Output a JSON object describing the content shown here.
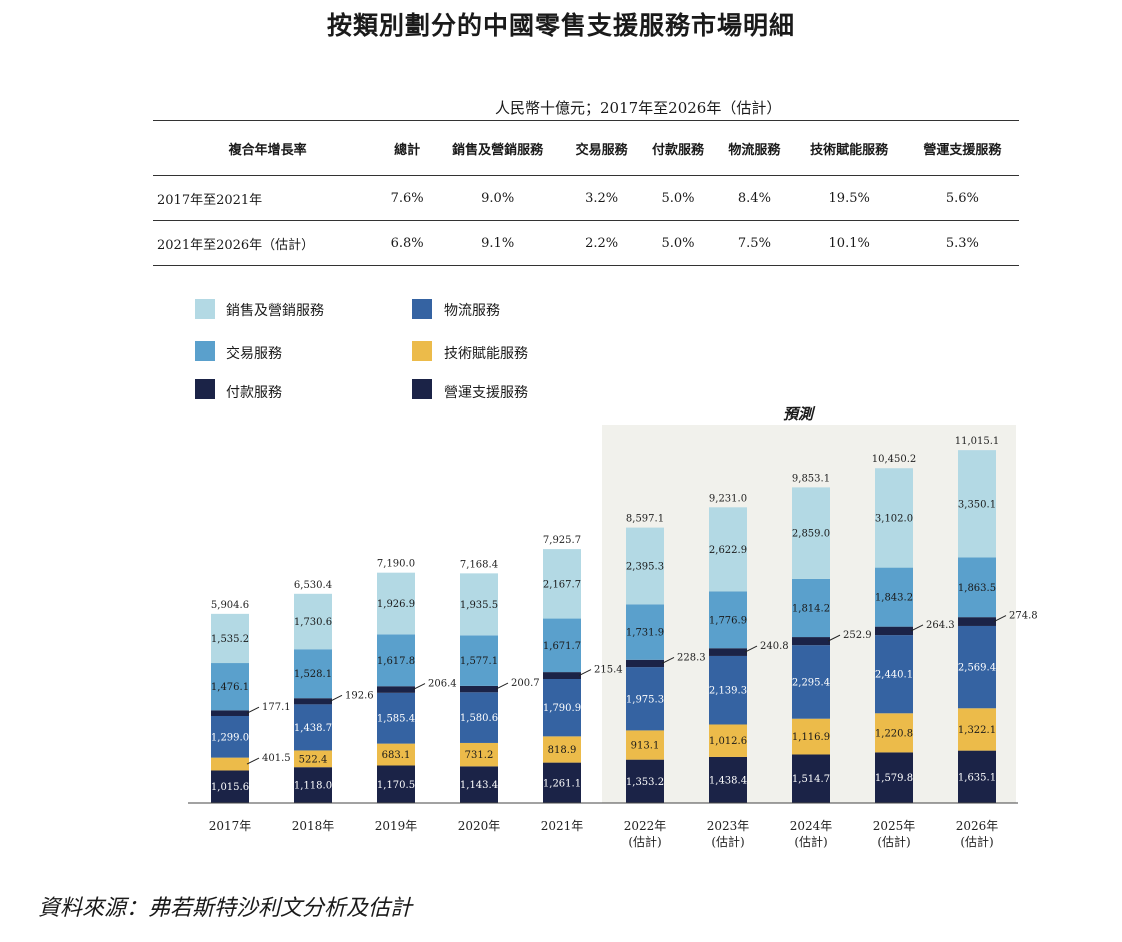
{
  "title": "按類別劃分的中國零售支援服務市場明細",
  "units": "人民幣十億元；2017年至2026年（估計）",
  "cagr_table": {
    "headers": [
      "複合年增長率",
      "總計",
      "銷售及營銷服務",
      "交易服務",
      "付款服務",
      "物流服務",
      "技術賦能服務",
      "營運支援服務"
    ],
    "rows": [
      [
        "2017年至2021年",
        "7.6%",
        "9.0%",
        "3.2%",
        "5.0%",
        "8.4%",
        "19.5%",
        "5.6%"
      ],
      [
        "2021年至2026年（估計）",
        "6.8%",
        "9.1%",
        "2.2%",
        "5.0%",
        "7.5%",
        "10.1%",
        "5.3%"
      ]
    ]
  },
  "legend": [
    {
      "label": "銷售及營銷服務",
      "color": "#b3d9e4"
    },
    {
      "label": "物流服務",
      "color": "#3563a2"
    },
    {
      "label": "交易服務",
      "color": "#5aa0cc"
    },
    {
      "label": "技術賦能服務",
      "color": "#ecbb4a"
    },
    {
      "label": "付款服務",
      "color": "#1b2347"
    },
    {
      "label": "營運支援服務",
      "color": "#1b2347"
    }
  ],
  "forecast_label": "預測",
  "source": "資料來源：弗若斯特沙利文分析及估計",
  "chart_data": {
    "type": "bar",
    "stacked": true,
    "title": "按類別劃分的中國零售支援服務市場明細",
    "ylabel": "人民幣十億元",
    "ylim": [
      0,
      11800
    ],
    "categories": [
      "2017年",
      "2018年",
      "2019年",
      "2020年",
      "2021年",
      "2022年\n(估計)",
      "2023年\n(估計)",
      "2024年\n(估計)",
      "2025年\n(估計)",
      "2026年\n(估計)"
    ],
    "forecast_from_index": 5,
    "series": [
      {
        "name": "營運支援服務",
        "color": "#1b2347",
        "values": [
          1015.6,
          1118.0,
          1170.5,
          1143.4,
          1261.1,
          1353.2,
          1438.4,
          1514.7,
          1579.8,
          1635.1
        ],
        "labels": [
          "1,015.6",
          "1,118.0",
          "1,170.5",
          "1,143.4",
          "1,261.1",
          "1,353.2",
          "1,438.4",
          "1,514.7",
          "1,579.8",
          "1,635.1"
        ]
      },
      {
        "name": "技術賦能服務",
        "color": "#ecbb4a",
        "values": [
          401.5,
          522.4,
          683.1,
          731.2,
          818.9,
          913.1,
          1012.6,
          1116.9,
          1220.8,
          1322.1
        ],
        "labels": [
          "401.5",
          "522.4",
          "683.1",
          "731.2",
          "818.9",
          "913.1",
          "1,012.6",
          "1,116.9",
          "1,220.8",
          "1,322.1"
        ]
      },
      {
        "name": "物流服務",
        "color": "#3563a2",
        "values": [
          1299.0,
          1438.7,
          1585.4,
          1580.6,
          1790.9,
          1975.3,
          2139.3,
          2295.4,
          2440.1,
          2569.4
        ],
        "labels": [
          "1,299.0",
          "1,438.7",
          "1,585.4",
          "1,580.6",
          "1,790.9",
          "1,975.3",
          "2,139.3",
          "2,295.4",
          "2,440.1",
          "2,569.4"
        ]
      },
      {
        "name": "付款服務",
        "color": "#1b2347",
        "values": [
          177.1,
          192.6,
          206.4,
          200.7,
          215.4,
          228.3,
          240.8,
          252.9,
          264.3,
          274.8
        ],
        "labels": [
          "177.1",
          "192.6",
          "206.4",
          "200.7",
          "215.4",
          "228.3",
          "240.8",
          "252.9",
          "264.3",
          "274.8"
        ]
      },
      {
        "name": "交易服務",
        "color": "#5aa0cc",
        "values": [
          1476.1,
          1528.1,
          1617.8,
          1577.1,
          1671.7,
          1731.9,
          1776.9,
          1814.2,
          1843.2,
          1863.5
        ],
        "labels": [
          "1,476.1",
          "1,528.1",
          "1,617.8",
          "1,577.1",
          "1,671.7",
          "1,731.9",
          "1,776.9",
          "1,814.2",
          "1,843.2",
          "1,863.5"
        ]
      },
      {
        "name": "銷售及營銷服務",
        "color": "#b3d9e4",
        "values": [
          1535.2,
          1730.6,
          1926.9,
          1935.5,
          2167.7,
          2395.3,
          2622.9,
          2859.0,
          3102.0,
          3350.1
        ],
        "labels": [
          "1,535.2",
          "1,730.6",
          "1,926.9",
          "1,935.5",
          "2,167.7",
          "2,395.3",
          "2,622.9",
          "2,859.0",
          "3,102.0",
          "3,350.1"
        ]
      }
    ],
    "totals": [
      5904.6,
      6530.4,
      7190.0,
      7168.4,
      7925.7,
      8597.1,
      9231.0,
      9853.1,
      10450.2,
      11015.1
    ],
    "total_labels": [
      "5,904.6",
      "6,530.4",
      "7,190.0",
      "7,168.4",
      "7,925.7",
      "8,597.1",
      "9,231.0",
      "9,853.1",
      "10,450.2",
      "11,015.1"
    ]
  }
}
